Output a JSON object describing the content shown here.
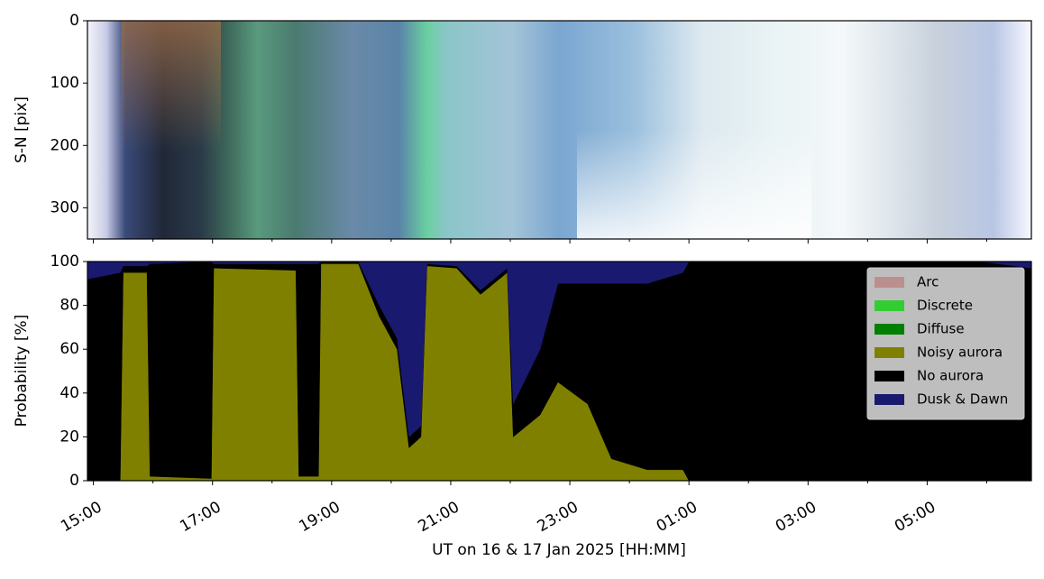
{
  "chart_data": [
    {
      "type": "image",
      "ylabel": "S-N [pix]",
      "ylim": [
        350,
        0
      ],
      "yticks": [
        0,
        100,
        200,
        300
      ]
    },
    {
      "type": "stacked_area",
      "xlabel": "UT on 16 & 17 Jan 2025 [HH:MM]",
      "ylabel": "Probability [%]",
      "x": [
        14.9,
        15.45,
        15.5,
        15.9,
        15.95,
        16.98,
        17.02,
        18.4,
        18.45,
        18.78,
        18.82,
        19.45,
        19.8,
        20.1,
        20.3,
        20.5,
        20.6,
        21.1,
        21.5,
        21.95,
        22.05,
        22.5,
        22.8,
        23.3,
        23.7,
        24.3,
        24.9,
        25.0,
        29.9,
        30.75
      ],
      "series": [
        {
          "name": "Arc",
          "color": "#bc8f8f",
          "values": [
            0,
            0,
            0,
            0,
            0,
            0,
            0,
            0,
            0,
            0,
            0,
            0,
            0,
            0,
            0,
            0,
            0,
            0,
            0,
            0,
            0,
            0,
            0,
            0,
            0,
            0,
            0,
            0,
            0,
            0
          ]
        },
        {
          "name": "Discrete",
          "color": "#32cd32",
          "values": [
            0,
            0,
            0,
            0,
            0,
            0,
            0,
            0,
            0,
            0,
            0,
            0,
            0,
            0,
            0,
            0,
            0,
            0,
            0,
            0,
            0,
            0,
            0,
            0,
            0,
            0,
            0,
            0,
            0,
            0
          ]
        },
        {
          "name": "Diffuse",
          "color": "#008000",
          "values": [
            0,
            0,
            0,
            0,
            0,
            0,
            0,
            0,
            0,
            0,
            0,
            0,
            0,
            0,
            0,
            0,
            0,
            0,
            0,
            0,
            0,
            0,
            0,
            0,
            0,
            0,
            0,
            0,
            0,
            0
          ]
        },
        {
          "name": "Noisy aurora",
          "color": "#808000",
          "values": [
            0,
            0,
            95,
            95,
            2,
            1,
            97,
            96,
            2,
            2,
            99,
            99,
            75,
            60,
            15,
            20,
            98,
            97,
            85,
            95,
            20,
            30,
            45,
            35,
            10,
            5,
            5,
            0,
            0,
            0
          ]
        },
        {
          "name": "No aurora",
          "color": "#000000",
          "values": [
            92,
            95,
            3,
            3,
            97,
            99,
            2,
            3,
            97,
            97,
            1,
            1,
            5,
            5,
            5,
            5,
            1,
            1,
            2,
            2,
            15,
            30,
            45,
            55,
            80,
            85,
            90,
            100,
            100,
            97
          ]
        },
        {
          "name": "Dusk & Dawn",
          "color": "#191970",
          "values": [
            8,
            5,
            2,
            2,
            1,
            0,
            1,
            1,
            1,
            1,
            0,
            0,
            20,
            35,
            80,
            75,
            1,
            2,
            13,
            3,
            65,
            40,
            10,
            10,
            10,
            10,
            5,
            0,
            0,
            3
          ]
        }
      ],
      "xlim": [
        14.9,
        30.75
      ],
      "xticks": [
        {
          "value": 15,
          "label": "15:00"
        },
        {
          "value": 17,
          "label": "17:00"
        },
        {
          "value": 19,
          "label": "19:00"
        },
        {
          "value": 21,
          "label": "21:00"
        },
        {
          "value": 23,
          "label": "23:00"
        },
        {
          "value": 25,
          "label": "01:00"
        },
        {
          "value": 27,
          "label": "03:00"
        },
        {
          "value": 29,
          "label": "05:00"
        }
      ],
      "xminorticks": [
        16,
        18,
        20,
        22,
        24,
        26,
        28,
        30
      ],
      "ylim": [
        0,
        100
      ],
      "yticks": [
        0,
        20,
        40,
        60,
        80,
        100
      ],
      "legend": "upper right"
    }
  ]
}
